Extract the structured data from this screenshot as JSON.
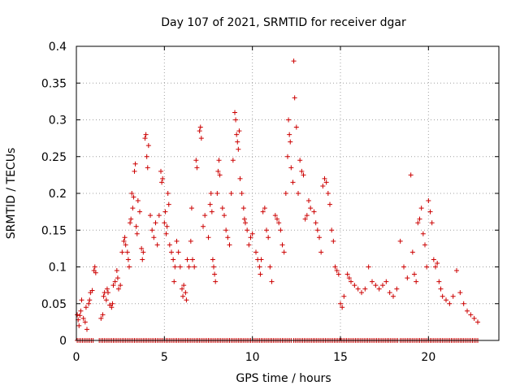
{
  "chart_data": {
    "type": "scatter",
    "title": "Day 107 of 2021, SRMTID for receiver dgar",
    "xlabel": "GPS time / hours",
    "ylabel": "SRMTID / TECUs",
    "xlim": [
      0,
      24
    ],
    "ylim": [
      0,
      0.4
    ],
    "x_ticks": [
      0,
      5,
      10,
      15,
      20
    ],
    "y_ticks": [
      0,
      0.05,
      0.1,
      0.15,
      0.2,
      0.25,
      0.3,
      0.35,
      0.4
    ],
    "x_tick_labels": [
      "0",
      "5",
      "10",
      "15",
      "20"
    ],
    "y_tick_labels": [
      "0",
      "0.05",
      "0.1",
      "0.15",
      "0.2",
      "0.25",
      "0.3",
      "0.35",
      "0.4"
    ],
    "grid": true,
    "marker": "+",
    "series": [
      {
        "name": "SRMTID",
        "color": "#cc0000",
        "points": [
          [
            0.05,
            0.035
          ],
          [
            0.1,
            0.028
          ],
          [
            0.15,
            0.02
          ],
          [
            0.2,
            0.034
          ],
          [
            0.25,
            0.04
          ],
          [
            0.3,
            0.055
          ],
          [
            0.4,
            0.03
          ],
          [
            0.5,
            0.025
          ],
          [
            0.55,
            0.045
          ],
          [
            0.6,
            0.015
          ],
          [
            0.7,
            0.05
          ],
          [
            0.75,
            0.055
          ],
          [
            0.8,
            0.065
          ],
          [
            0.9,
            0.068
          ],
          [
            1.0,
            0.095
          ],
          [
            1.05,
            0.1
          ],
          [
            1.1,
            0.092
          ],
          [
            1.4,
            0.03
          ],
          [
            1.5,
            0.035
          ],
          [
            1.55,
            0.06
          ],
          [
            1.6,
            0.065
          ],
          [
            1.7,
            0.055
          ],
          [
            1.75,
            0.07
          ],
          [
            1.8,
            0.065
          ],
          [
            1.9,
            0.048
          ],
          [
            2.0,
            0.045
          ],
          [
            2.05,
            0.05
          ],
          [
            2.1,
            0.075
          ],
          [
            2.2,
            0.08
          ],
          [
            2.3,
            0.095
          ],
          [
            2.35,
            0.085
          ],
          [
            2.4,
            0.07
          ],
          [
            2.5,
            0.075
          ],
          [
            2.6,
            0.12
          ],
          [
            2.7,
            0.135
          ],
          [
            2.75,
            0.14
          ],
          [
            2.8,
            0.13
          ],
          [
            2.9,
            0.12
          ],
          [
            2.95,
            0.11
          ],
          [
            3.0,
            0.1
          ],
          [
            3.05,
            0.16
          ],
          [
            3.1,
            0.165
          ],
          [
            3.15,
            0.2
          ],
          [
            3.2,
            0.18
          ],
          [
            3.25,
            0.195
          ],
          [
            3.3,
            0.23
          ],
          [
            3.35,
            0.24
          ],
          [
            3.4,
            0.155
          ],
          [
            3.45,
            0.145
          ],
          [
            3.5,
            0.19
          ],
          [
            3.6,
            0.175
          ],
          [
            3.7,
            0.125
          ],
          [
            3.75,
            0.11
          ],
          [
            3.8,
            0.12
          ],
          [
            3.9,
            0.275
          ],
          [
            3.95,
            0.28
          ],
          [
            4.0,
            0.25
          ],
          [
            4.05,
            0.235
          ],
          [
            4.1,
            0.265
          ],
          [
            4.2,
            0.17
          ],
          [
            4.3,
            0.15
          ],
          [
            4.4,
            0.14
          ],
          [
            4.5,
            0.16
          ],
          [
            4.6,
            0.13
          ],
          [
            4.7,
            0.17
          ],
          [
            4.8,
            0.23
          ],
          [
            4.85,
            0.215
          ],
          [
            4.9,
            0.22
          ],
          [
            5.0,
            0.16
          ],
          [
            5.05,
            0.175
          ],
          [
            5.1,
            0.145
          ],
          [
            5.15,
            0.155
          ],
          [
            5.2,
            0.2
          ],
          [
            5.25,
            0.185
          ],
          [
            5.3,
            0.13
          ],
          [
            5.4,
            0.12
          ],
          [
            5.5,
            0.11
          ],
          [
            5.55,
            0.08
          ],
          [
            5.6,
            0.1
          ],
          [
            5.7,
            0.135
          ],
          [
            5.8,
            0.12
          ],
          [
            5.9,
            0.1
          ],
          [
            6.0,
            0.07
          ],
          [
            6.05,
            0.06
          ],
          [
            6.1,
            0.075
          ],
          [
            6.2,
            0.065
          ],
          [
            6.25,
            0.055
          ],
          [
            6.3,
            0.11
          ],
          [
            6.4,
            0.1
          ],
          [
            6.5,
            0.135
          ],
          [
            6.55,
            0.18
          ],
          [
            6.6,
            0.11
          ],
          [
            6.7,
            0.1
          ],
          [
            6.8,
            0.245
          ],
          [
            6.85,
            0.235
          ],
          [
            7.0,
            0.285
          ],
          [
            7.05,
            0.29
          ],
          [
            7.1,
            0.275
          ],
          [
            7.2,
            0.155
          ],
          [
            7.3,
            0.17
          ],
          [
            7.5,
            0.14
          ],
          [
            7.6,
            0.185
          ],
          [
            7.65,
            0.2
          ],
          [
            7.7,
            0.175
          ],
          [
            7.75,
            0.11
          ],
          [
            7.8,
            0.1
          ],
          [
            7.85,
            0.09
          ],
          [
            7.9,
            0.08
          ],
          [
            8.0,
            0.2
          ],
          [
            8.05,
            0.23
          ],
          [
            8.1,
            0.245
          ],
          [
            8.15,
            0.225
          ],
          [
            8.3,
            0.18
          ],
          [
            8.4,
            0.17
          ],
          [
            8.5,
            0.15
          ],
          [
            8.6,
            0.14
          ],
          [
            8.7,
            0.13
          ],
          [
            8.8,
            0.2
          ],
          [
            8.9,
            0.245
          ],
          [
            9.0,
            0.31
          ],
          [
            9.05,
            0.3
          ],
          [
            9.1,
            0.28
          ],
          [
            9.15,
            0.27
          ],
          [
            9.2,
            0.26
          ],
          [
            9.25,
            0.285
          ],
          [
            9.3,
            0.22
          ],
          [
            9.4,
            0.2
          ],
          [
            9.5,
            0.18
          ],
          [
            9.55,
            0.165
          ],
          [
            9.6,
            0.16
          ],
          [
            9.7,
            0.15
          ],
          [
            9.8,
            0.13
          ],
          [
            9.9,
            0.14
          ],
          [
            10.0,
            0.145
          ],
          [
            10.2,
            0.12
          ],
          [
            10.3,
            0.11
          ],
          [
            10.4,
            0.1
          ],
          [
            10.45,
            0.09
          ],
          [
            10.5,
            0.11
          ],
          [
            10.6,
            0.175
          ],
          [
            10.7,
            0.18
          ],
          [
            10.8,
            0.15
          ],
          [
            10.9,
            0.14
          ],
          [
            11.0,
            0.1
          ],
          [
            11.1,
            0.08
          ],
          [
            11.3,
            0.17
          ],
          [
            11.4,
            0.165
          ],
          [
            11.5,
            0.16
          ],
          [
            11.6,
            0.15
          ],
          [
            11.7,
            0.13
          ],
          [
            11.8,
            0.12
          ],
          [
            11.9,
            0.2
          ],
          [
            12.0,
            0.25
          ],
          [
            12.05,
            0.3
          ],
          [
            12.1,
            0.28
          ],
          [
            12.15,
            0.27
          ],
          [
            12.2,
            0.235
          ],
          [
            12.3,
            0.215
          ],
          [
            12.35,
            0.38
          ],
          [
            12.4,
            0.33
          ],
          [
            12.5,
            0.29
          ],
          [
            12.6,
            0.2
          ],
          [
            12.7,
            0.245
          ],
          [
            12.8,
            0.23
          ],
          [
            12.9,
            0.225
          ],
          [
            13.0,
            0.165
          ],
          [
            13.1,
            0.17
          ],
          [
            13.2,
            0.19
          ],
          [
            13.3,
            0.18
          ],
          [
            13.5,
            0.175
          ],
          [
            13.6,
            0.16
          ],
          [
            13.7,
            0.15
          ],
          [
            13.8,
            0.14
          ],
          [
            13.9,
            0.12
          ],
          [
            14.0,
            0.21
          ],
          [
            14.1,
            0.22
          ],
          [
            14.2,
            0.215
          ],
          [
            14.3,
            0.2
          ],
          [
            14.4,
            0.185
          ],
          [
            14.5,
            0.15
          ],
          [
            14.6,
            0.135
          ],
          [
            14.7,
            0.1
          ],
          [
            14.8,
            0.095
          ],
          [
            14.9,
            0.09
          ],
          [
            15.0,
            0.05
          ],
          [
            15.1,
            0.045
          ],
          [
            15.2,
            0.06
          ],
          [
            15.4,
            0.09
          ],
          [
            15.5,
            0.085
          ],
          [
            15.6,
            0.08
          ],
          [
            15.8,
            0.075
          ],
          [
            16.0,
            0.07
          ],
          [
            16.2,
            0.065
          ],
          [
            16.4,
            0.07
          ],
          [
            16.6,
            0.1
          ],
          [
            16.8,
            0.08
          ],
          [
            17.0,
            0.075
          ],
          [
            17.2,
            0.07
          ],
          [
            17.4,
            0.075
          ],
          [
            17.6,
            0.08
          ],
          [
            17.8,
            0.065
          ],
          [
            18.0,
            0.06
          ],
          [
            18.2,
            0.07
          ],
          [
            18.4,
            0.135
          ],
          [
            18.6,
            0.1
          ],
          [
            18.8,
            0.085
          ],
          [
            19.0,
            0.225
          ],
          [
            19.1,
            0.12
          ],
          [
            19.2,
            0.09
          ],
          [
            19.3,
            0.08
          ],
          [
            19.4,
            0.16
          ],
          [
            19.5,
            0.165
          ],
          [
            19.6,
            0.18
          ],
          [
            19.7,
            0.145
          ],
          [
            19.8,
            0.13
          ],
          [
            19.9,
            0.1
          ],
          [
            20.0,
            0.19
          ],
          [
            20.1,
            0.175
          ],
          [
            20.2,
            0.16
          ],
          [
            20.3,
            0.11
          ],
          [
            20.4,
            0.1
          ],
          [
            20.5,
            0.105
          ],
          [
            20.6,
            0.08
          ],
          [
            20.7,
            0.07
          ],
          [
            20.8,
            0.06
          ],
          [
            21.0,
            0.055
          ],
          [
            21.2,
            0.05
          ],
          [
            21.4,
            0.06
          ],
          [
            21.6,
            0.095
          ],
          [
            21.8,
            0.065
          ],
          [
            22.0,
            0.05
          ],
          [
            22.2,
            0.04
          ],
          [
            22.4,
            0.035
          ],
          [
            22.6,
            0.03
          ],
          [
            22.8,
            0.025
          ]
        ]
      }
    ],
    "baseline_points": {
      "y": 0,
      "x_ranges": [
        [
          0.05,
          0.95
        ],
        [
          1.3,
          3.3
        ],
        [
          3.4,
          12.2
        ],
        [
          12.35,
          18.3
        ],
        [
          18.4,
          22.85
        ]
      ],
      "step": 0.1
    }
  }
}
